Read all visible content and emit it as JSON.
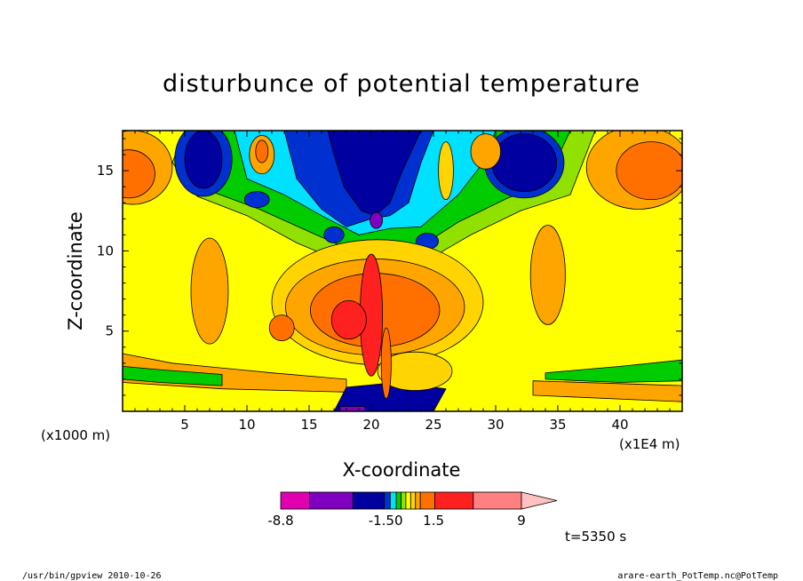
{
  "chart_data": {
    "type": "heatmap",
    "title": "disturbunce of potential temperature",
    "xlabel": "X-coordinate",
    "ylabel": "Z-coordinate",
    "x_units": "(x1E4 m)",
    "y_units": "(x1000 m)",
    "xlim": [
      0,
      45
    ],
    "ylim": [
      0,
      17.5
    ],
    "x_ticks": [
      5,
      10,
      15,
      20,
      25,
      30,
      35,
      40
    ],
    "y_ticks": [
      5,
      10,
      15
    ],
    "x_tick_labels": [
      "5",
      "10",
      "15",
      "20",
      "25",
      "30",
      "35",
      "40"
    ],
    "y_tick_labels": [
      "5",
      "10",
      "15"
    ],
    "colorbar": {
      "levels": [
        -8.8,
        -7.0,
        -5.2,
        -3.4,
        -2.5,
        -1.5,
        -1.0,
        -0.5,
        0,
        0.5,
        1.0,
        1.5,
        3.0,
        6.0,
        9.0
      ],
      "colors": [
        "#e000b0",
        "#8000c0",
        "#0000a0",
        "#0030d0",
        "#00e0ff",
        "#00cc00",
        "#90e000",
        "#ffff00",
        "#ffd400",
        "#ffa500",
        "#ff7000",
        "#ff2020",
        "#ff8080",
        "#ffc0c0"
      ],
      "tick_labels": [
        "-8.8",
        "-1.50",
        "1.5",
        "9"
      ],
      "extend": "max"
    },
    "time_label": "t=5350 s"
  },
  "footer": {
    "left": "/usr/bin/gpview   2010-10-26",
    "right": "arare-earth_PotTemp.nc@PotTemp"
  }
}
